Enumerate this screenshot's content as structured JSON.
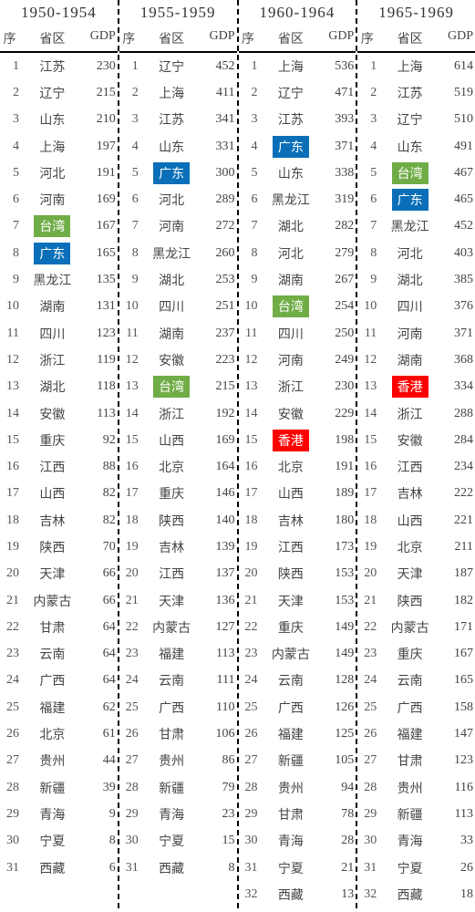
{
  "headers": {
    "rank": "序",
    "prov": "省区",
    "gdp": "GDP"
  },
  "highlight_colors": {
    "blue": "#0a6fb8",
    "green": "#70ad47",
    "red": "#ff0000"
  },
  "periods": [
    {
      "title": "1950-1954",
      "rows": [
        {
          "rank": 1,
          "prov": "江苏",
          "gdp": 230
        },
        {
          "rank": 2,
          "prov": "辽宁",
          "gdp": 215
        },
        {
          "rank": 3,
          "prov": "山东",
          "gdp": 210
        },
        {
          "rank": 4,
          "prov": "上海",
          "gdp": 197
        },
        {
          "rank": 5,
          "prov": "河北",
          "gdp": 191
        },
        {
          "rank": 6,
          "prov": "河南",
          "gdp": 169
        },
        {
          "rank": 7,
          "prov": "台湾",
          "gdp": 167,
          "hl": "green"
        },
        {
          "rank": 8,
          "prov": "广东",
          "gdp": 165,
          "hl": "blue"
        },
        {
          "rank": 9,
          "prov": "黑龙江",
          "gdp": 135
        },
        {
          "rank": 10,
          "prov": "湖南",
          "gdp": 131
        },
        {
          "rank": 11,
          "prov": "四川",
          "gdp": 123
        },
        {
          "rank": 12,
          "prov": "浙江",
          "gdp": 119
        },
        {
          "rank": 13,
          "prov": "湖北",
          "gdp": 118
        },
        {
          "rank": 14,
          "prov": "安徽",
          "gdp": 113
        },
        {
          "rank": 15,
          "prov": "重庆",
          "gdp": 92
        },
        {
          "rank": 16,
          "prov": "江西",
          "gdp": 88
        },
        {
          "rank": 17,
          "prov": "山西",
          "gdp": 82
        },
        {
          "rank": 18,
          "prov": "吉林",
          "gdp": 82
        },
        {
          "rank": 19,
          "prov": "陕西",
          "gdp": 70
        },
        {
          "rank": 20,
          "prov": "天津",
          "gdp": 66
        },
        {
          "rank": 21,
          "prov": "内蒙古",
          "gdp": 66
        },
        {
          "rank": 22,
          "prov": "甘肃",
          "gdp": 64
        },
        {
          "rank": 23,
          "prov": "云南",
          "gdp": 64
        },
        {
          "rank": 24,
          "prov": "广西",
          "gdp": 64
        },
        {
          "rank": 25,
          "prov": "福建",
          "gdp": 62
        },
        {
          "rank": 26,
          "prov": "北京",
          "gdp": 61
        },
        {
          "rank": 27,
          "prov": "贵州",
          "gdp": 44
        },
        {
          "rank": 28,
          "prov": "新疆",
          "gdp": 39
        },
        {
          "rank": 29,
          "prov": "青海",
          "gdp": 9
        },
        {
          "rank": 30,
          "prov": "宁夏",
          "gdp": 8
        },
        {
          "rank": 31,
          "prov": "西藏",
          "gdp": 6
        }
      ]
    },
    {
      "title": "1955-1959",
      "rows": [
        {
          "rank": 1,
          "prov": "辽宁",
          "gdp": 452
        },
        {
          "rank": 2,
          "prov": "上海",
          "gdp": 411
        },
        {
          "rank": 3,
          "prov": "江苏",
          "gdp": 341
        },
        {
          "rank": 4,
          "prov": "山东",
          "gdp": 331
        },
        {
          "rank": 5,
          "prov": "广东",
          "gdp": 300,
          "hl": "blue"
        },
        {
          "rank": 6,
          "prov": "河北",
          "gdp": 289
        },
        {
          "rank": 7,
          "prov": "河南",
          "gdp": 272
        },
        {
          "rank": 8,
          "prov": "黑龙江",
          "gdp": 260
        },
        {
          "rank": 9,
          "prov": "湖北",
          "gdp": 253
        },
        {
          "rank": 10,
          "prov": "四川",
          "gdp": 251
        },
        {
          "rank": 11,
          "prov": "湖南",
          "gdp": 237
        },
        {
          "rank": 12,
          "prov": "安徽",
          "gdp": 223
        },
        {
          "rank": 13,
          "prov": "台湾",
          "gdp": 215,
          "hl": "green"
        },
        {
          "rank": 14,
          "prov": "浙江",
          "gdp": 192
        },
        {
          "rank": 15,
          "prov": "山西",
          "gdp": 169
        },
        {
          "rank": 16,
          "prov": "北京",
          "gdp": 164
        },
        {
          "rank": 17,
          "prov": "重庆",
          "gdp": 146
        },
        {
          "rank": 18,
          "prov": "陕西",
          "gdp": 140
        },
        {
          "rank": 19,
          "prov": "吉林",
          "gdp": 139
        },
        {
          "rank": 20,
          "prov": "江西",
          "gdp": 137
        },
        {
          "rank": 21,
          "prov": "天津",
          "gdp": 136
        },
        {
          "rank": 22,
          "prov": "内蒙古",
          "gdp": 127
        },
        {
          "rank": 23,
          "prov": "福建",
          "gdp": 113
        },
        {
          "rank": 24,
          "prov": "云南",
          "gdp": 111
        },
        {
          "rank": 25,
          "prov": "广西",
          "gdp": 110
        },
        {
          "rank": 26,
          "prov": "甘肃",
          "gdp": 106
        },
        {
          "rank": 27,
          "prov": "贵州",
          "gdp": 86
        },
        {
          "rank": 28,
          "prov": "新疆",
          "gdp": 79
        },
        {
          "rank": 29,
          "prov": "青海",
          "gdp": 23
        },
        {
          "rank": 30,
          "prov": "宁夏",
          "gdp": 15
        },
        {
          "rank": 31,
          "prov": "西藏",
          "gdp": 8
        }
      ]
    },
    {
      "title": "1960-1964",
      "rows": [
        {
          "rank": 1,
          "prov": "上海",
          "gdp": 536
        },
        {
          "rank": 2,
          "prov": "辽宁",
          "gdp": 471
        },
        {
          "rank": 3,
          "prov": "江苏",
          "gdp": 393
        },
        {
          "rank": 4,
          "prov": "广东",
          "gdp": 371,
          "hl": "blue"
        },
        {
          "rank": 5,
          "prov": "山东",
          "gdp": 338
        },
        {
          "rank": 6,
          "prov": "黑龙江",
          "gdp": 319
        },
        {
          "rank": 7,
          "prov": "湖北",
          "gdp": 282
        },
        {
          "rank": 8,
          "prov": "河北",
          "gdp": 279
        },
        {
          "rank": 9,
          "prov": "湖南",
          "gdp": 267
        },
        {
          "rank": 10,
          "prov": "台湾",
          "gdp": 254,
          "hl": "green"
        },
        {
          "rank": 11,
          "prov": "四川",
          "gdp": 250
        },
        {
          "rank": 12,
          "prov": "河南",
          "gdp": 249
        },
        {
          "rank": 13,
          "prov": "浙江",
          "gdp": 230
        },
        {
          "rank": 14,
          "prov": "安徽",
          "gdp": 229
        },
        {
          "rank": 15,
          "prov": "香港",
          "gdp": 198,
          "hl": "red"
        },
        {
          "rank": 16,
          "prov": "北京",
          "gdp": 191
        },
        {
          "rank": 17,
          "prov": "山西",
          "gdp": 189
        },
        {
          "rank": 18,
          "prov": "吉林",
          "gdp": 180
        },
        {
          "rank": 19,
          "prov": "江西",
          "gdp": 173
        },
        {
          "rank": 20,
          "prov": "陕西",
          "gdp": 153
        },
        {
          "rank": 21,
          "prov": "天津",
          "gdp": 153
        },
        {
          "rank": 22,
          "prov": "重庆",
          "gdp": 149
        },
        {
          "rank": 23,
          "prov": "内蒙古",
          "gdp": 149
        },
        {
          "rank": 24,
          "prov": "云南",
          "gdp": 128
        },
        {
          "rank": 25,
          "prov": "广西",
          "gdp": 126
        },
        {
          "rank": 26,
          "prov": "福建",
          "gdp": 125
        },
        {
          "rank": 27,
          "prov": "新疆",
          "gdp": 105
        },
        {
          "rank": 28,
          "prov": "贵州",
          "gdp": 94
        },
        {
          "rank": 29,
          "prov": "甘肃",
          "gdp": 78
        },
        {
          "rank": 30,
          "prov": "青海",
          "gdp": 28
        },
        {
          "rank": 31,
          "prov": "宁夏",
          "gdp": 21
        },
        {
          "rank": 32,
          "prov": "西藏",
          "gdp": 13
        }
      ]
    },
    {
      "title": "1965-1969",
      "rows": [
        {
          "rank": 1,
          "prov": "上海",
          "gdp": 614
        },
        {
          "rank": 2,
          "prov": "江苏",
          "gdp": 519
        },
        {
          "rank": 3,
          "prov": "辽宁",
          "gdp": 510
        },
        {
          "rank": 4,
          "prov": "山东",
          "gdp": 491
        },
        {
          "rank": 5,
          "prov": "台湾",
          "gdp": 467,
          "hl": "green"
        },
        {
          "rank": 6,
          "prov": "广东",
          "gdp": 465,
          "hl": "blue"
        },
        {
          "rank": 7,
          "prov": "黑龙江",
          "gdp": 452
        },
        {
          "rank": 8,
          "prov": "河北",
          "gdp": 403
        },
        {
          "rank": 9,
          "prov": "湖北",
          "gdp": 385
        },
        {
          "rank": 10,
          "prov": "四川",
          "gdp": 376
        },
        {
          "rank": 11,
          "prov": "河南",
          "gdp": 371
        },
        {
          "rank": 12,
          "prov": "湖南",
          "gdp": 368
        },
        {
          "rank": 13,
          "prov": "香港",
          "gdp": 334,
          "hl": "red"
        },
        {
          "rank": 14,
          "prov": "浙江",
          "gdp": 288
        },
        {
          "rank": 15,
          "prov": "安徽",
          "gdp": 284
        },
        {
          "rank": 16,
          "prov": "江西",
          "gdp": 234
        },
        {
          "rank": 17,
          "prov": "吉林",
          "gdp": 222
        },
        {
          "rank": 18,
          "prov": "山西",
          "gdp": 221
        },
        {
          "rank": 19,
          "prov": "北京",
          "gdp": 211
        },
        {
          "rank": 20,
          "prov": "天津",
          "gdp": 187
        },
        {
          "rank": 21,
          "prov": "陕西",
          "gdp": 182
        },
        {
          "rank": 22,
          "prov": "内蒙古",
          "gdp": 171
        },
        {
          "rank": 23,
          "prov": "重庆",
          "gdp": 167
        },
        {
          "rank": 24,
          "prov": "云南",
          "gdp": 165
        },
        {
          "rank": 25,
          "prov": "广西",
          "gdp": 158
        },
        {
          "rank": 26,
          "prov": "福建",
          "gdp": 147
        },
        {
          "rank": 27,
          "prov": "甘肃",
          "gdp": 123
        },
        {
          "rank": 28,
          "prov": "贵州",
          "gdp": 116
        },
        {
          "rank": 29,
          "prov": "新疆",
          "gdp": 113
        },
        {
          "rank": 30,
          "prov": "青海",
          "gdp": 33
        },
        {
          "rank": 31,
          "prov": "宁夏",
          "gdp": 26
        },
        {
          "rank": 32,
          "prov": "西藏",
          "gdp": 18
        }
      ]
    }
  ]
}
